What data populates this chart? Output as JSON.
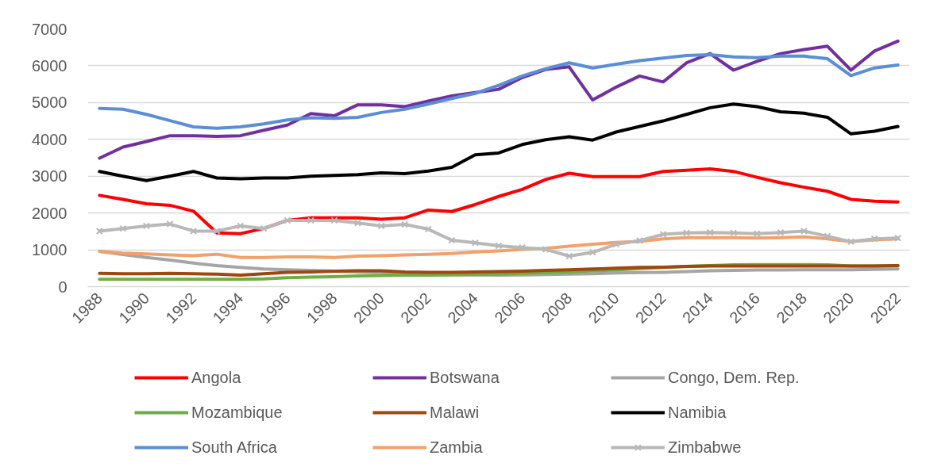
{
  "chart_data": {
    "type": "line",
    "x": [
      1988,
      1989,
      1990,
      1991,
      1992,
      1993,
      1994,
      1995,
      1996,
      1997,
      1998,
      1999,
      2000,
      2001,
      2002,
      2003,
      2004,
      2005,
      2006,
      2007,
      2008,
      2009,
      2010,
      2011,
      2012,
      2013,
      2014,
      2015,
      2016,
      2017,
      2018,
      2019,
      2020,
      2021,
      2022
    ],
    "xlim": [
      1987.5,
      2022.5
    ],
    "xticks": [
      1988,
      1990,
      1992,
      1994,
      1996,
      1998,
      2000,
      2002,
      2004,
      2006,
      2008,
      2010,
      2012,
      2014,
      2016,
      2018,
      2020,
      2022
    ],
    "ylim": [
      0,
      7000
    ],
    "yticks": [
      0,
      1000,
      2000,
      3000,
      4000,
      5000,
      6000,
      7000
    ],
    "grid": "y",
    "legend": "bottom",
    "marker": "none",
    "line_style": "solid",
    "series": [
      {
        "name": "Angola",
        "color": "#ff0000",
        "values": [
          2480,
          2370,
          2250,
          2210,
          2050,
          1460,
          1440,
          1580,
          1800,
          1870,
          1870,
          1870,
          1830,
          1870,
          2080,
          2040,
          2230,
          2450,
          2640,
          2910,
          3080,
          2990,
          2990,
          2990,
          3130,
          3160,
          3200,
          3130,
          2970,
          2820,
          2700,
          2590,
          2370,
          2320,
          2300
        ]
      },
      {
        "name": "Botswana",
        "color": "#7030a0",
        "values": [
          3490,
          3790,
          3940,
          4100,
          4100,
          4080,
          4100,
          4250,
          4390,
          4700,
          4640,
          4940,
          4940,
          4890,
          5040,
          5180,
          5270,
          5360,
          5680,
          5900,
          5970,
          5070,
          5420,
          5720,
          5560,
          6080,
          6330,
          5880,
          6120,
          6330,
          6440,
          6530,
          5880,
          6400,
          6670
        ]
      },
      {
        "name": "Congo, Dem. Rep.",
        "color": "#a5a5a5",
        "values": [
          960,
          870,
          790,
          720,
          640,
          570,
          520,
          480,
          460,
          440,
          420,
          400,
          380,
          360,
          340,
          330,
          320,
          310,
          320,
          330,
          340,
          350,
          370,
          380,
          390,
          410,
          430,
          440,
          450,
          450,
          460,
          460,
          460,
          470,
          480
        ]
      },
      {
        "name": "Mozambique",
        "color": "#70ad47",
        "values": [
          200,
          200,
          200,
          200,
          200,
          200,
          200,
          210,
          240,
          260,
          270,
          290,
          300,
          310,
          310,
          320,
          330,
          340,
          360,
          380,
          400,
          430,
          450,
          490,
          520,
          550,
          570,
          590,
          600,
          600,
          600,
          590,
          560,
          560,
          570
        ]
      },
      {
        "name": "Malawi",
        "color": "#9e480e",
        "values": [
          360,
          350,
          350,
          360,
          350,
          340,
          310,
          350,
          390,
          400,
          420,
          430,
          430,
          400,
          390,
          390,
          400,
          410,
          420,
          440,
          460,
          480,
          500,
          520,
          530,
          550,
          560,
          560,
          560,
          560,
          560,
          560,
          560,
          560,
          570
        ]
      },
      {
        "name": "Namibia",
        "color": "#000000",
        "values": [
          3130,
          3000,
          2880,
          3000,
          3130,
          2950,
          2930,
          2950,
          2950,
          3000,
          3020,
          3040,
          3090,
          3070,
          3140,
          3240,
          3580,
          3630,
          3860,
          3990,
          4070,
          3980,
          4200,
          4350,
          4500,
          4680,
          4860,
          4960,
          4890,
          4750,
          4710,
          4600,
          4150,
          4220,
          4350
        ]
      },
      {
        "name": "South Africa",
        "color": "#5b8ed6",
        "values": [
          4840,
          4820,
          4680,
          4510,
          4340,
          4300,
          4340,
          4420,
          4530,
          4590,
          4570,
          4600,
          4730,
          4820,
          4960,
          5110,
          5250,
          5470,
          5720,
          5920,
          6080,
          5940,
          6040,
          6140,
          6210,
          6280,
          6300,
          6240,
          6220,
          6260,
          6260,
          6190,
          5730,
          5940,
          6020
        ]
      },
      {
        "name": "Zambia",
        "color": "#f4a06a",
        "values": [
          960,
          910,
          890,
          860,
          840,
          880,
          790,
          790,
          810,
          810,
          790,
          830,
          840,
          860,
          880,
          900,
          940,
          970,
          1010,
          1040,
          1100,
          1150,
          1200,
          1230,
          1300,
          1330,
          1330,
          1330,
          1320,
          1330,
          1350,
          1300,
          1220,
          1270,
          1300
        ]
      },
      {
        "name": "Zimbabwe",
        "color": "#b8b8b8",
        "marker": "cross",
        "values": [
          1510,
          1580,
          1650,
          1700,
          1510,
          1510,
          1650,
          1580,
          1800,
          1800,
          1800,
          1730,
          1650,
          1690,
          1560,
          1260,
          1190,
          1110,
          1060,
          1010,
          830,
          930,
          1150,
          1250,
          1420,
          1460,
          1470,
          1460,
          1440,
          1470,
          1510,
          1370,
          1220,
          1300,
          1320
        ]
      }
    ]
  }
}
